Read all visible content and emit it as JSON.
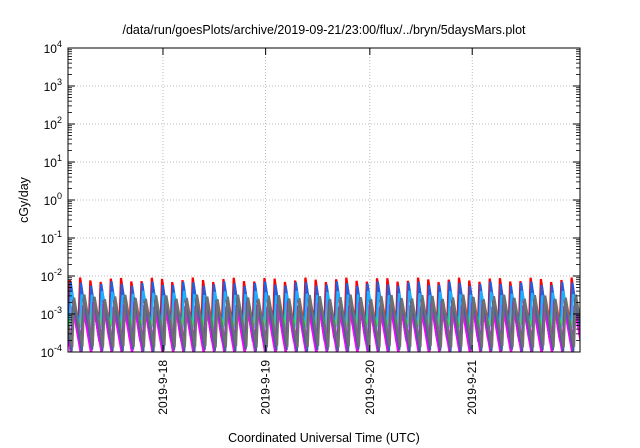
{
  "chart_data": {
    "type": "line",
    "title": "/data/run/goesPlots/archive/2019-09-21/23:00/flux/../bryn/5daysMars.plot",
    "xlabel": "Coordinated Universal Time (UTC)",
    "ylabel": "cGy/day",
    "yscale": "log",
    "ylim_exponent": [
      -4,
      4
    ],
    "xlim_days": [
      "2019-09-17",
      "2019-09-21+"
    ],
    "grid": true,
    "y_ticks": [
      {
        "base": "10",
        "exp": "4"
      },
      {
        "base": "10",
        "exp": "3"
      },
      {
        "base": "10",
        "exp": "2"
      },
      {
        "base": "10",
        "exp": "1"
      },
      {
        "base": "10",
        "exp": "0"
      },
      {
        "base": "10",
        "exp": "-1"
      },
      {
        "base": "10",
        "exp": "-2"
      },
      {
        "base": "10",
        "exp": "-3"
      },
      {
        "base": "10",
        "exp": "-4"
      }
    ],
    "x_ticks": [
      "2019-9-18",
      "2019-9-19",
      "2019-9-20",
      "2019-9-21"
    ],
    "pattern": {
      "periods": 50,
      "description": "periodic sawtooth dose-rate curves, sharp rise then decay each cycle"
    },
    "series": [
      {
        "color": "#ff0000",
        "peak_exp": -2.1,
        "trough_exp": -3.6
      },
      {
        "color": "#1f5fe0",
        "peak_exp": -2.2,
        "trough_exp": -3.7
      },
      {
        "color": "#20b0ff",
        "peak_exp": -2.45,
        "trough_exp": -3.35
      },
      {
        "color": "#30e060",
        "peak_exp": -2.9,
        "trough_exp": -3.3
      },
      {
        "color": "#ff00ff",
        "peak_exp": -2.75,
        "trough_exp": -4.05
      },
      {
        "color": "#4060a0",
        "peak_exp": -2.6,
        "trough_exp": -3.95
      },
      {
        "color": "#707070",
        "peak_exp": -2.55,
        "trough_exp": -3.85
      }
    ]
  }
}
